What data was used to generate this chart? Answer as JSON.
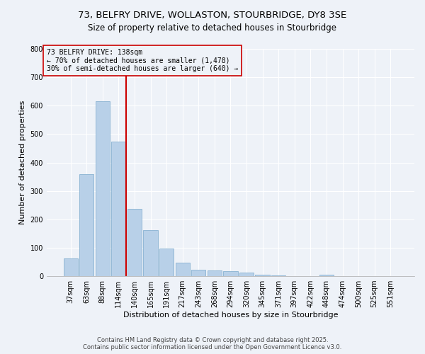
{
  "title_line1": "73, BELFRY DRIVE, WOLLASTON, STOURBRIDGE, DY8 3SE",
  "title_line2": "Size of property relative to detached houses in Stourbridge",
  "xlabel": "Distribution of detached houses by size in Stourbridge",
  "ylabel": "Number of detached properties",
  "categories": [
    "37sqm",
    "63sqm",
    "88sqm",
    "114sqm",
    "140sqm",
    "165sqm",
    "191sqm",
    "217sqm",
    "243sqm",
    "268sqm",
    "294sqm",
    "320sqm",
    "345sqm",
    "371sqm",
    "397sqm",
    "422sqm",
    "448sqm",
    "474sqm",
    "500sqm",
    "525sqm",
    "551sqm"
  ],
  "values": [
    62,
    360,
    615,
    473,
    237,
    162,
    97,
    48,
    22,
    20,
    18,
    13,
    5,
    2,
    1,
    1,
    4,
    1,
    1,
    0,
    1
  ],
  "bar_color": "#b8d0e8",
  "bar_edge_color": "#7aa8cc",
  "bar_linewidth": 0.5,
  "vline_color": "#cc0000",
  "vline_x_index": 3,
  "annotation_text": "73 BELFRY DRIVE: 138sqm\n← 70% of detached houses are smaller (1,478)\n30% of semi-detached houses are larger (640) →",
  "annotation_box_color": "#cc0000",
  "ylim": [
    0,
    800
  ],
  "yticks": [
    0,
    100,
    200,
    300,
    400,
    500,
    600,
    700,
    800
  ],
  "background_color": "#eef2f8",
  "grid_color": "#ffffff",
  "footer": "Contains HM Land Registry data © Crown copyright and database right 2025.\nContains public sector information licensed under the Open Government Licence v3.0.",
  "title_fontsize": 9.5,
  "subtitle_fontsize": 8.5,
  "axis_label_fontsize": 8,
  "tick_fontsize": 7,
  "annotation_fontsize": 7,
  "footer_fontsize": 6
}
